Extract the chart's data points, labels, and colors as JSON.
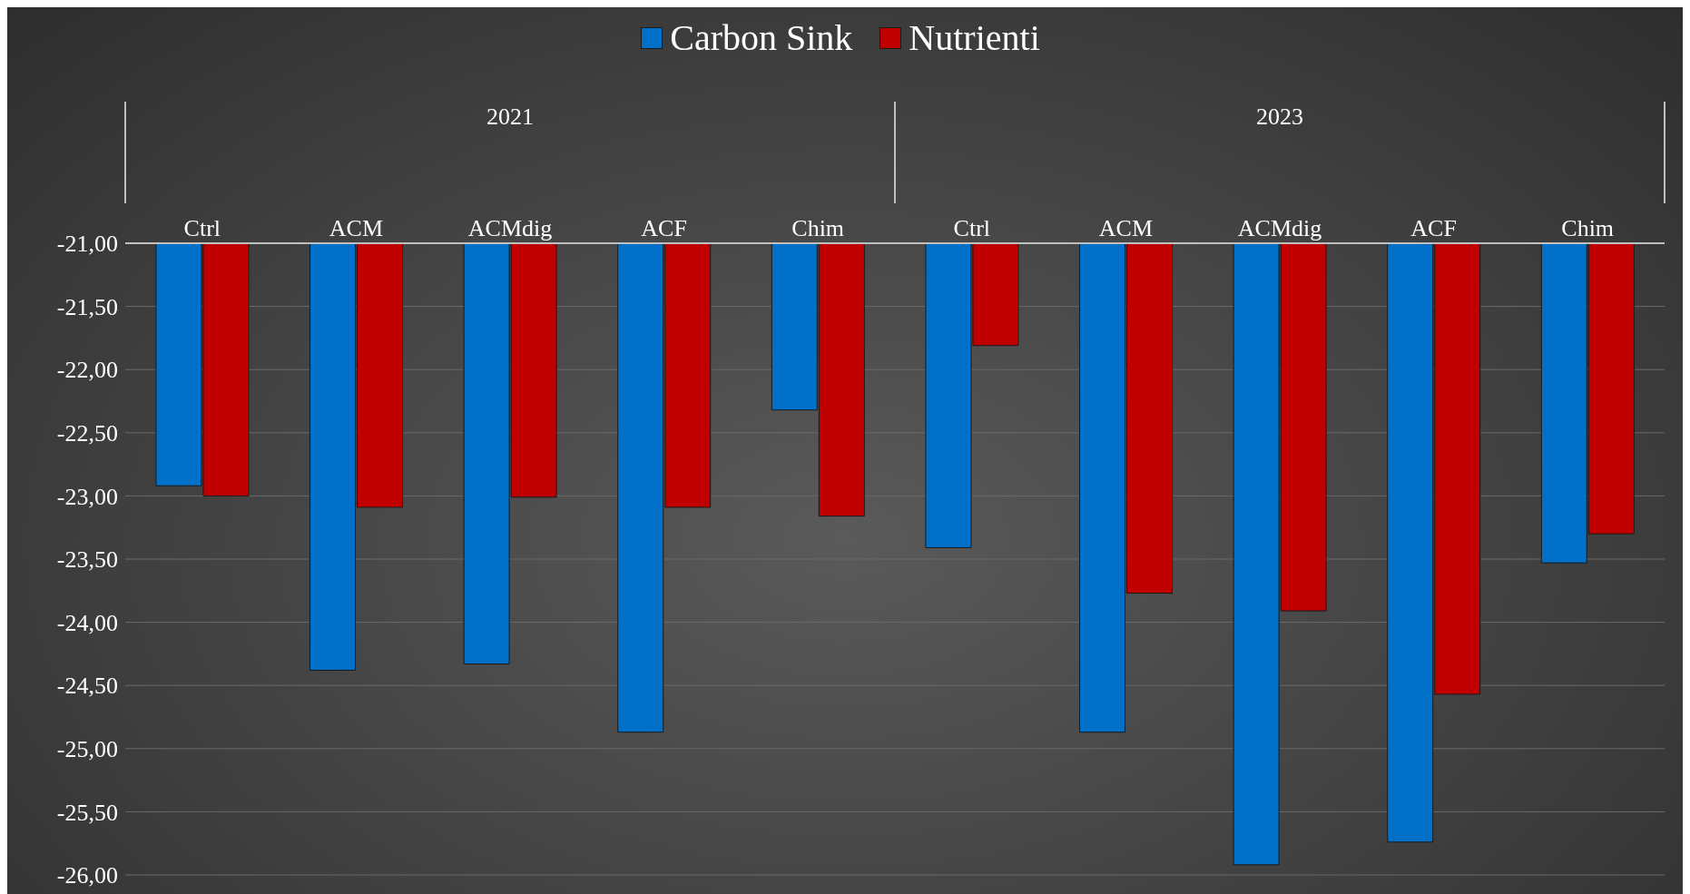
{
  "chart_data": {
    "type": "bar",
    "categories": [
      "Ctrl",
      "ACM",
      "ACMdig",
      "ACF",
      "Chim",
      "Ctrl",
      "ACM",
      "ACMdig",
      "ACF",
      "Chim"
    ],
    "annotations": [
      "2021",
      "2023"
    ],
    "series": [
      {
        "name": "Carbon Sink",
        "color": "#0070c8",
        "values": [
          -22.92,
          -24.38,
          -24.33,
          -24.87,
          -22.32,
          -23.41,
          -24.87,
          -25.92,
          -25.74,
          -23.53
        ]
      },
      {
        "name": "Nutrienti",
        "color": "#c00000",
        "values": [
          -23.0,
          -23.09,
          -23.01,
          -23.09,
          -23.16,
          -21.81,
          -23.77,
          -23.91,
          -24.57,
          -23.3
        ]
      }
    ],
    "ylim": [
      -26,
      -21
    ],
    "yticks": [
      {
        "value": -21,
        "label": "-21,00"
      },
      {
        "value": -21.5,
        "label": "-21,50"
      },
      {
        "value": -22,
        "label": "-22,00"
      },
      {
        "value": -22.5,
        "label": "-22,50"
      },
      {
        "value": -23,
        "label": "-23,00"
      },
      {
        "value": -23.5,
        "label": "-23,50"
      },
      {
        "value": -24,
        "label": "-24,00"
      },
      {
        "value": -24.5,
        "label": "-24,50"
      },
      {
        "value": -25,
        "label": "-25,00"
      },
      {
        "value": -25.5,
        "label": "-25,50"
      },
      {
        "value": -26,
        "label": "-26,00"
      }
    ],
    "grid": "y",
    "legend": "top"
  }
}
